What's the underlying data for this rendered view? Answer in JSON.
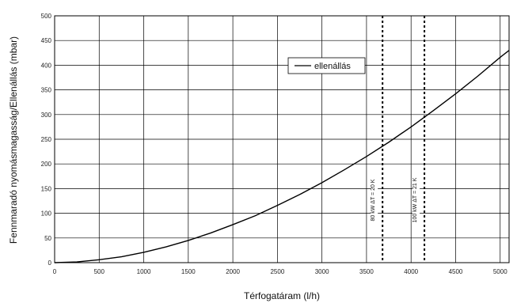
{
  "chart_data": {
    "type": "line",
    "xlabel": "Térfogatáram (l/h)",
    "ylabel": "Fennmaradó nyomásmagasság/Ellenállás (mbar)",
    "xlim": [
      0,
      5100
    ],
    "ylim": [
      0,
      500
    ],
    "x_ticks": [
      "0",
      "500",
      "1000",
      "1500",
      "2000",
      "2500",
      "3000",
      "3500",
      "4000",
      "4500",
      "5000"
    ],
    "y_ticks": [
      "0",
      "50",
      "100",
      "150",
      "200",
      "250",
      "300",
      "350",
      "400",
      "450",
      "500"
    ],
    "grid": true,
    "legend_position": "top-right",
    "series": [
      {
        "name": "ellenállás",
        "color": "#000000",
        "x": [
          0,
          250,
          500,
          750,
          1000,
          1250,
          1500,
          1750,
          2000,
          2250,
          2500,
          2750,
          3000,
          3250,
          3500,
          3750,
          4000,
          4250,
          4500,
          4750,
          5000,
          5100
        ],
        "y": [
          0,
          1.5,
          6,
          12,
          21,
          32,
          45,
          60,
          77,
          95,
          116,
          138,
          162,
          188,
          215,
          244,
          275,
          308,
          342,
          378,
          416,
          430
        ]
      }
    ],
    "reference_lines": [
      {
        "x": 3680,
        "label": "80 kW   ΔT = 20 K"
      },
      {
        "x": 4150,
        "label": "100 kW   ΔT = 21 K"
      }
    ]
  }
}
